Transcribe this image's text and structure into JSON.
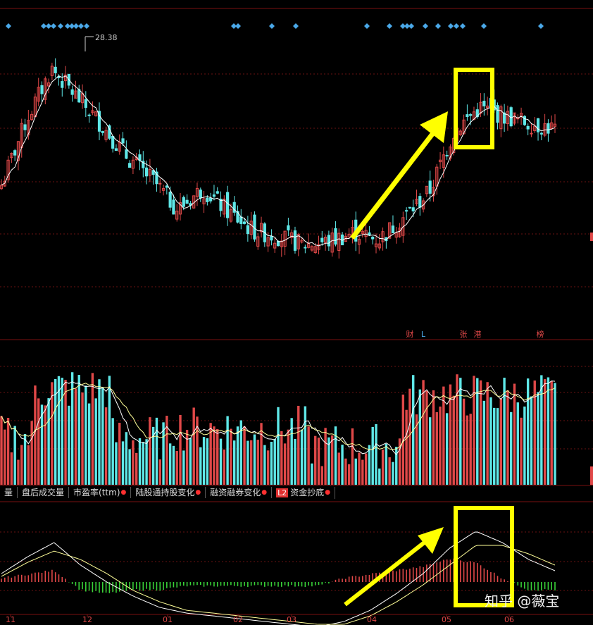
{
  "chart_data": [
    {
      "type": "candlestick",
      "panel": "price",
      "peak_label": "28.38",
      "signal_markers": [
        "财",
        "L",
        "张",
        "港",
        "榜"
      ],
      "close_estimates": [
        20.8,
        24.5,
        27.4,
        25.8,
        24.2,
        22.4,
        21.1,
        19.4,
        20.6,
        19.3,
        18.2,
        17.9,
        17.4,
        17.6,
        18.1,
        17.7,
        19.0,
        20.4,
        23.9,
        25.2,
        24.7,
        24.3,
        24.0
      ],
      "colors": {
        "up": "#e04848",
        "down": "#5fe8e8",
        "ma": "#ffffff"
      }
    },
    {
      "type": "bar",
      "panel": "volume",
      "colors": {
        "up": "#e04848",
        "down": "#5fe8e8",
        "ma1": "#ffffff",
        "ma2": "#ffff99"
      }
    },
    {
      "type": "line",
      "panel": "indicator",
      "series": [
        {
          "values": [
            0.3,
            0.9,
            1.4,
            0.6,
            0.0,
            -0.5,
            -0.9,
            -1.1,
            -1.2,
            -1.3,
            -1.4,
            -1.5,
            -1.6,
            -1.4,
            -1.0,
            -0.4,
            0.3,
            1.2,
            1.8,
            1.4,
            0.8,
            0.4
          ]
        },
        {
          "values": [
            0.2,
            0.7,
            1.1,
            0.8,
            0.3,
            -0.3,
            -0.7,
            -1.0,
            -1.1,
            -1.2,
            -1.3,
            -1.4,
            -1.5,
            -1.5,
            -1.2,
            -0.7,
            -0.1,
            0.6,
            1.3,
            1.3,
            1.0,
            0.6
          ]
        }
      ],
      "colors": {
        "pos": "#e04848",
        "neg": "#38d038",
        "line1": "#ffffff",
        "line2": "#ffff99"
      }
    }
  ],
  "x_tick_labels": [
    "11",
    "12",
    "01",
    "02",
    "03",
    "04",
    "05",
    "06"
  ],
  "indicator_tabs": [
    {
      "label": "量",
      "dot": false
    },
    {
      "label": "盘后成交量",
      "dot": false
    },
    {
      "label": "市盈率(ttm)",
      "dot": true
    },
    {
      "label": "陆股通持股变化",
      "dot": true
    },
    {
      "label": "融资融券变化",
      "dot": true
    },
    {
      "label": "资金抄底",
      "dot": true,
      "badge": "L2"
    }
  ],
  "annotation_color": "#ffff00",
  "watermark": "知乎 @薇宝"
}
